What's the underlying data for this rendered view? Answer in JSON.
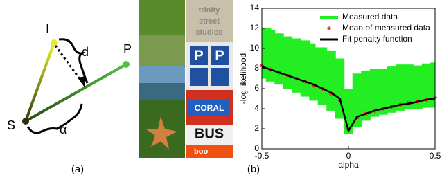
{
  "diagram": {
    "point_i": "I",
    "point_p": "P",
    "point_s": "S",
    "distance": "d",
    "angle": "α",
    "caption": "(a)"
  },
  "images": {
    "texts": [
      "trinity",
      "street",
      "studios",
      "P",
      "P",
      "CORAL",
      "BUS",
      "boo"
    ]
  },
  "caption_b": "(b)",
  "chart_data": {
    "type": "line",
    "xlabel": "alpha",
    "ylabel": "-log likelihood",
    "x": [
      -0.5,
      -0.45,
      -0.4,
      -0.35,
      -0.3,
      -0.25,
      -0.2,
      -0.15,
      -0.1,
      -0.05,
      0,
      0.05,
      0.1,
      0.15,
      0.2,
      0.25,
      0.3,
      0.35,
      0.4,
      0.45,
      0.5
    ],
    "series": [
      {
        "name": "Measured data",
        "color": "#22ee22",
        "style": "band",
        "values": [
          12,
          11.8,
          11.5,
          11.2,
          11,
          10.8,
          10.5,
          10.2,
          9.8,
          9,
          6,
          7.5,
          7.8,
          8,
          8,
          8.2,
          8.4,
          8.4,
          8.3,
          8.5,
          8.6
        ],
        "min": [
          7,
          6.7,
          6.4,
          6.0,
          5.6,
          5.2,
          4.8,
          4.4,
          3.8,
          3.0,
          1.5,
          2.2,
          2.8,
          3.2,
          3.4,
          3.6,
          3.8,
          4.0,
          4.0,
          4.1,
          4.1
        ]
      },
      {
        "name": "Mean of measured data",
        "color": "#e02020",
        "style": "asterisk",
        "values": [
          8.3,
          7.9,
          7.6,
          7.3,
          7.0,
          6.7,
          6.3,
          6.0,
          5.5,
          4.9,
          2.0,
          3.1,
          3.5,
          3.8,
          4.0,
          4.2,
          4.4,
          4.6,
          4.7,
          4.9,
          5.1
        ]
      },
      {
        "name": "Fit penalty function",
        "color": "#000000",
        "style": "line",
        "values": [
          8.2,
          7.9,
          7.6,
          7.3,
          7.0,
          6.7,
          6.4,
          6.0,
          5.6,
          5.0,
          1.8,
          3.2,
          3.5,
          3.8,
          4.0,
          4.2,
          4.4,
          4.5,
          4.7,
          4.9,
          5.0
        ]
      }
    ],
    "xlim": [
      -0.5,
      0.5
    ],
    "xticks": [
      -0.5,
      0,
      0.5
    ],
    "ylim": [
      0,
      14
    ],
    "yticks": [
      0,
      2,
      4,
      6,
      8,
      10,
      12,
      14
    ],
    "legend": "upper right"
  }
}
